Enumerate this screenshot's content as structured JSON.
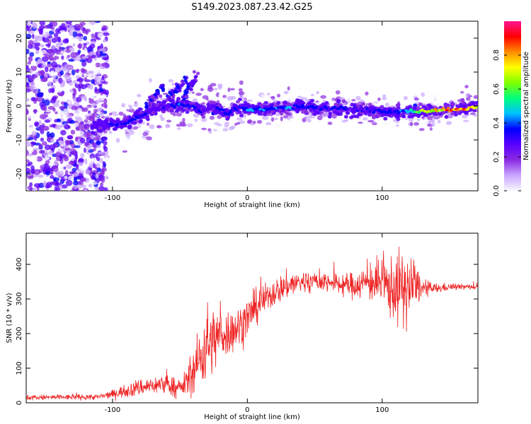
{
  "title": "S149.2023.087.23.42.G25",
  "chart_data": [
    {
      "type": "heatmap",
      "xlabel": "Height of straight line (km)",
      "ylabel": "Frequency (Hz)",
      "xlim": [
        -164,
        171
      ],
      "ylim": [
        -25,
        25
      ],
      "xticks": [
        -100,
        0,
        100
      ],
      "yticks": [
        -20,
        -10,
        0,
        10,
        20
      ],
      "colorbar": {
        "label": "Normalized spectral amplitude",
        "range": [
          0,
          1
        ],
        "ticks": [
          0.0,
          0.2,
          0.4,
          0.6,
          0.8
        ],
        "colors": [
          "#f8f8ff",
          "#c9a6ff",
          "#8a2be2",
          "#5a00ff",
          "#0000ff",
          "#00bfff",
          "#00ff7f",
          "#7fff00",
          "#ffff00",
          "#ff8c00",
          "#ff0000",
          "#ff1493"
        ]
      },
      "ridge": {
        "x": [
          -115,
          -100,
          -90,
          -80,
          -70,
          -60,
          -50,
          -40,
          -35,
          -30,
          -25,
          -20,
          -15,
          -10,
          -5,
          0,
          10,
          20,
          30,
          40,
          50,
          60,
          70,
          80,
          90,
          100,
          110,
          120,
          130,
          140,
          150,
          160,
          170
        ],
        "y": [
          -6,
          -5.5,
          -5,
          -3,
          -1,
          0,
          0.5,
          0,
          -1.5,
          -1,
          -0.5,
          -1,
          -2.5,
          -1,
          -0.5,
          -1,
          -0.8,
          -0.8,
          -0.5,
          -0.2,
          -0.5,
          -0.7,
          -0.5,
          -1,
          -1.3,
          -1.5,
          -1.8,
          -1.5,
          -1.5,
          -1.2,
          -1,
          -0.8,
          -0.5
        ],
        "amplitude": [
          0.3,
          0.35,
          0.35,
          0.4,
          0.3,
          0.35,
          0.4,
          0.35,
          0.35,
          0.35,
          0.3,
          0.35,
          0.4,
          0.35,
          0.35,
          0.45,
          0.45,
          0.45,
          0.45,
          0.4,
          0.4,
          0.4,
          0.4,
          0.35,
          0.35,
          0.4,
          0.4,
          0.5,
          0.75,
          0.85,
          0.9,
          0.9,
          0.7
        ]
      },
      "streaks": [
        {
          "x": [
            -75,
            -62
          ],
          "y": [
            0,
            6
          ]
        },
        {
          "x": [
            -60,
            -45
          ],
          "y": [
            1,
            8
          ]
        },
        {
          "x": [
            -48,
            -36
          ],
          "y": [
            2,
            10
          ]
        }
      ]
    },
    {
      "type": "line",
      "xlabel": "Height of straight line (km)",
      "ylabel": "SNR (10 * v/v)",
      "xlim": [
        -164,
        171
      ],
      "ylim": [
        0,
        490
      ],
      "xticks": [
        -100,
        0,
        100
      ],
      "yticks": [
        0,
        100,
        200,
        300,
        400
      ],
      "color": "#ee2222",
      "envelope": {
        "x": [
          -164,
          -110,
          -100,
          -90,
          -80,
          -70,
          -60,
          -50,
          -45,
          -40,
          -35,
          -30,
          -25,
          -20,
          -15,
          -10,
          -5,
          0,
          10,
          20,
          30,
          40,
          50,
          60,
          70,
          80,
          90,
          100,
          110,
          115,
          120,
          125,
          130,
          140,
          150,
          160,
          171
        ],
        "mean": [
          15,
          17,
          25,
          35,
          45,
          50,
          55,
          40,
          60,
          90,
          130,
          170,
          180,
          200,
          200,
          210,
          225,
          245,
          290,
          320,
          340,
          350,
          350,
          350,
          340,
          340,
          350,
          340,
          330,
          330,
          330,
          340,
          330,
          330,
          335,
          335,
          335
        ],
        "spread": [
          8,
          8,
          12,
          20,
          25,
          25,
          30,
          25,
          40,
          60,
          90,
          120,
          90,
          80,
          70,
          60,
          60,
          60,
          45,
          40,
          40,
          35,
          30,
          30,
          30,
          40,
          50,
          70,
          100,
          110,
          110,
          60,
          25,
          15,
          10,
          8,
          8
        ]
      }
    }
  ]
}
